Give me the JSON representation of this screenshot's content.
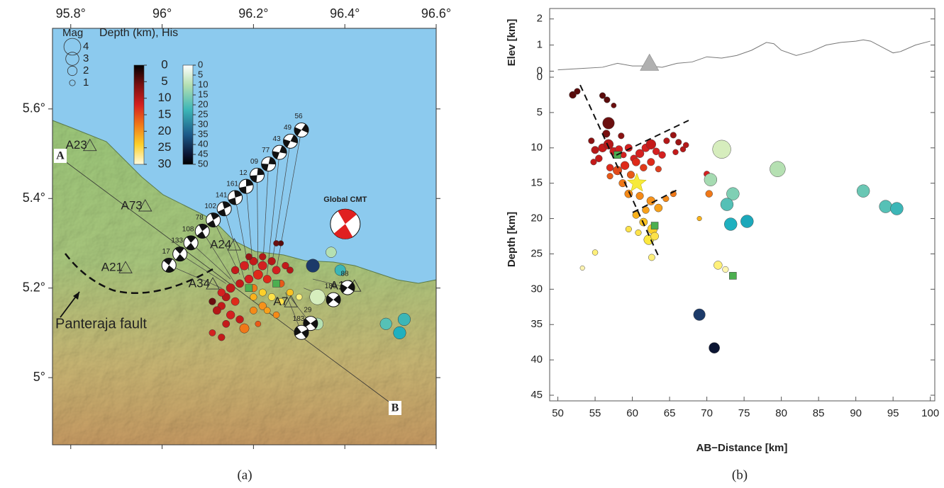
{
  "chart_data": [
    {
      "type": "map",
      "caption": "(a)",
      "xlim": [
        95.76,
        96.6
      ],
      "ylim": [
        4.85,
        5.78
      ],
      "xticks": [
        {
          "value": 95.8,
          "label": "95.8°"
        },
        {
          "value": 96,
          "label": "96°"
        },
        {
          "value": 96.2,
          "label": "96.2°"
        },
        {
          "value": 96.4,
          "label": "96.4°"
        },
        {
          "value": 96.6,
          "label": "96.6°"
        }
      ],
      "yticks": [
        {
          "value": 5,
          "label": "5°"
        },
        {
          "value": 5.2,
          "label": "5.2°"
        },
        {
          "value": 5.4,
          "label": "5.4°"
        },
        {
          "value": 5.6,
          "label": "5.6°"
        }
      ],
      "profile_start": "A",
      "profile_end": "B",
      "fault_label": "Panteraja fault",
      "mag_title": "Mag",
      "mag_legend": [
        4,
        3,
        2,
        1
      ],
      "colorbar_title": "Depth (km), His",
      "depth_ticks": [
        0,
        5,
        10,
        15,
        20,
        25,
        30
      ],
      "his_ticks": [
        0,
        5,
        10,
        15,
        20,
        25,
        30,
        35,
        40,
        45,
        50
      ],
      "stations": {
        "names": [
          "A23",
          "A73",
          "A21",
          "A24",
          "A34",
          "A7",
          "A13"
        ],
        "x": [
          95.842,
          95.963,
          95.92,
          96.158,
          96.111,
          96.282,
          96.421
        ],
        "y": [
          5.518,
          5.383,
          5.245,
          5.296,
          5.209,
          5.169,
          5.204
        ]
      },
      "mechanisms": {
        "labels": [
          "17",
          "133",
          "108",
          "78",
          "102",
          "141",
          "161",
          "12",
          "09",
          "77",
          "43",
          "49",
          "56",
          "88",
          "186",
          "29",
          "183"
        ],
        "x": [
          96.015,
          96.039,
          96.063,
          96.088,
          96.112,
          96.136,
          96.16,
          96.184,
          96.208,
          96.233,
          96.257,
          96.281,
          96.305,
          96.406,
          96.375,
          96.325,
          96.305
        ],
        "y": [
          5.251,
          5.276,
          5.301,
          5.327,
          5.352,
          5.377,
          5.402,
          5.427,
          5.452,
          5.477,
          5.503,
          5.528,
          5.553,
          5.201,
          5.174,
          5.121,
          5.101
        ],
        "event_x": [
          96.13,
          96.14,
          96.15,
          96.16,
          96.17,
          96.18,
          96.19,
          96.2,
          96.21,
          96.22,
          96.23,
          96.24,
          96.25,
          96.33,
          96.31,
          96.28,
          96.27
        ],
        "event_y": [
          5.2,
          5.21,
          5.22,
          5.21,
          5.23,
          5.22,
          5.24,
          5.23,
          5.25,
          5.24,
          5.23,
          5.25,
          5.24,
          5.22,
          5.2,
          5.18,
          5.19
        ]
      },
      "global_cmt": {
        "label": "Global CMT",
        "x": 96.401,
        "y": 5.343,
        "color": "#e02020"
      },
      "events": {
        "x": [
          96.16,
          96.18,
          96.2,
          96.22,
          96.24,
          96.25,
          96.21,
          96.19,
          96.17,
          96.15,
          96.14,
          96.13,
          96.12,
          96.15,
          96.17,
          96.16,
          96.2,
          96.23,
          96.26,
          96.27,
          96.28,
          96.22,
          96.19,
          96.13,
          96.11,
          96.25,
          96.26,
          96.14,
          96.18,
          96.13,
          96.11,
          96.2,
          96.22,
          96.2,
          96.22,
          96.24,
          96.26,
          96.28,
          96.23,
          96.25,
          96.21,
          96.3,
          96.33,
          96.37,
          96.39,
          96.34,
          96.34,
          96.49,
          96.53,
          96.52,
          96.41
        ],
        "y": [
          5.24,
          5.25,
          5.26,
          5.25,
          5.26,
          5.24,
          5.23,
          5.22,
          5.21,
          5.2,
          5.18,
          5.16,
          5.15,
          5.14,
          5.13,
          5.17,
          5.2,
          5.22,
          5.21,
          5.25,
          5.24,
          5.27,
          5.27,
          5.19,
          5.17,
          5.3,
          5.3,
          5.12,
          5.11,
          5.09,
          5.1,
          5.15,
          5.16,
          5.18,
          5.19,
          5.18,
          5.17,
          5.19,
          5.15,
          5.14,
          5.12,
          5.18,
          5.25,
          5.28,
          5.24,
          5.18,
          5.12,
          5.12,
          5.13,
          5.1,
          5.21
        ],
        "sizes": [
          1.5,
          1.8,
          1.6,
          1.8,
          1.5,
          1.6,
          2,
          1.7,
          1.6,
          1.8,
          1.6,
          1.5,
          1.6,
          1.7,
          1.5,
          1.6,
          1.5,
          1.6,
          1.4,
          1.3,
          1.2,
          1.3,
          1.2,
          1.5,
          1.3,
          1,
          0.9,
          1.4,
          2,
          1.3,
          1.2,
          1.4,
          1.5,
          1.3,
          1.4,
          1.4,
          1.2,
          1.3,
          1.2,
          1.2,
          1,
          1.1,
          3,
          2.3,
          2.4,
          3.6,
          2.6,
          2.6,
          2.8,
          2.8,
          1.2
        ],
        "colors": [
          "#c41a1a",
          "#d42020",
          "#c41a1a",
          "#d42020",
          "#b51818",
          "#d42020",
          "#de2a1a",
          "#d42020",
          "#c41a1a",
          "#c41a1a",
          "#b51818",
          "#c41a1a",
          "#b51818",
          "#d42020",
          "#c41a1a",
          "#de2a1a",
          "#f07818",
          "#de2a1a",
          "#e85a18",
          "#c41a1a",
          "#b51818",
          "#b51818",
          "#9a1414",
          "#d42020",
          "#6b0f0f",
          "#6b0f0f",
          "#5a0b0b",
          "#c41a1a",
          "#f07818",
          "#c41a1a",
          "#d42020",
          "#f48a18",
          "#f6921a",
          "#f9b21c",
          "#fcd02a",
          "#fde24a",
          "#fde24a",
          "#fbc220",
          "#f7a01a",
          "#f48a18",
          "#e85a18",
          "#fff07a",
          "#1c3a69",
          "#b5e0b2",
          "#3cb6b7",
          "#d6edbd",
          "#b5e0b2",
          "#56c1b6",
          "#3cb6b7",
          "#1fb0bf",
          "#0b1533"
        ]
      },
      "squares": {
        "x": [
          96.19,
          96.25
        ],
        "y": [
          5.2,
          5.21
        ],
        "color": "#4caf50"
      }
    },
    {
      "type": "scatter",
      "caption": "(b)",
      "xlabel": "AB−Distance [km]",
      "ylabel": "Depth [km]",
      "y2label": "Elev [km]",
      "xlim": [
        48.9,
        100.6
      ],
      "ylim": [
        45.8,
        -0.3
      ],
      "y2lim": [
        -0.15,
        2.4
      ],
      "xticks": [
        50,
        55,
        60,
        65,
        70,
        75,
        80,
        85,
        90,
        95,
        100
      ],
      "yticks": [
        0,
        5,
        10,
        15,
        20,
        25,
        30,
        35,
        40,
        45
      ],
      "y2ticks": [
        0,
        1,
        2
      ],
      "topography": {
        "axis": "y2",
        "color": "#777777",
        "x": [
          50,
          53,
          56,
          58,
          60,
          62,
          64,
          66,
          68,
          70,
          72,
          74,
          76,
          78,
          79,
          80,
          82,
          84,
          86,
          88,
          90,
          91,
          92,
          94,
          95,
          96,
          98,
          100
        ],
        "y": [
          0.05,
          0.1,
          0.15,
          0.3,
          0.2,
          0.2,
          0.15,
          0.3,
          0.35,
          0.55,
          0.5,
          0.6,
          0.8,
          1.1,
          1.05,
          0.8,
          0.6,
          0.75,
          1.0,
          1.1,
          1.15,
          1.2,
          1.15,
          0.85,
          0.7,
          0.75,
          1.0,
          1.15
        ]
      },
      "volcano": {
        "axis": "y2",
        "x": 62.3,
        "y": 0.3,
        "color": "#b0b0b0"
      },
      "points": {
        "x": [
          52,
          52.6,
          56,
          56.6,
          57.5,
          56.8,
          56.5,
          58.5,
          54.5,
          55,
          55.5,
          54.8,
          56,
          56.8,
          57.5,
          58.2,
          58.8,
          59.5,
          60.2,
          61,
          61.8,
          62.5,
          63.2,
          64,
          64.6,
          65.5,
          66.2,
          66.8,
          67.2,
          65.8,
          59,
          60.5,
          61.5,
          62.5,
          57,
          58,
          59.8,
          63.5,
          57,
          58.7,
          59.5,
          61,
          62.5,
          63.5,
          61.8,
          64.5,
          65.5,
          60.5,
          61.5,
          62.7,
          59.5,
          62.2,
          62.6,
          63,
          60.8,
          55,
          53.3,
          70,
          70.3,
          69,
          71.5,
          72.5,
          72,
          70.5,
          73.5,
          72.7,
          79.5,
          73.2,
          75.4,
          91,
          94,
          95.5,
          69,
          71
        ],
        "y": [
          2.5,
          2,
          2.6,
          3.2,
          4,
          6.5,
          8,
          8.3,
          9,
          10.3,
          11.5,
          12,
          10,
          9.5,
          10.5,
          10.2,
          11,
          10,
          11.5,
          10.8,
          10,
          9.5,
          10.5,
          11,
          9,
          8.2,
          9.2,
          10.2,
          9.6,
          10.6,
          12.5,
          12,
          12.8,
          12,
          12.8,
          13.2,
          13.8,
          13,
          14,
          15,
          16.5,
          16.8,
          17.5,
          18.5,
          18.8,
          17.2,
          16.5,
          19.5,
          20.5,
          21.5,
          21.5,
          23,
          25.5,
          22.5,
          22,
          24.8,
          27,
          13.7,
          16.5,
          20,
          26.6,
          27.2,
          10.2,
          14.5,
          16.5,
          18,
          13,
          20.8,
          20.4,
          16.1,
          18.3,
          18.6,
          33.6,
          38.3
        ],
        "sizes": [
          1.2,
          1,
          1,
          1,
          0.8,
          2.2,
          1.3,
          1,
          1,
          1.3,
          1.2,
          1,
          1.5,
          1.8,
          1.4,
          1.3,
          1,
          1.3,
          1.2,
          1.5,
          1.4,
          1.8,
          1.2,
          1.2,
          1,
          1,
          1,
          0.9,
          0.9,
          0.9,
          1.5,
          1.4,
          1.2,
          1.3,
          1.2,
          1.6,
          1.3,
          1,
          1,
          1.3,
          1.4,
          1.3,
          1.5,
          1.4,
          1.2,
          1,
          1,
          1.2,
          1.4,
          1.8,
          1,
          1.8,
          1.1,
          1.4,
          1,
          0.9,
          0.7,
          1,
          1.2,
          0.7,
          1.5,
          1,
          3.6,
          2.4,
          2.4,
          2.4,
          3,
          2.4,
          2.4,
          2.4,
          2.4,
          2.4,
          2.2,
          2
        ],
        "colors": [
          "#5a0b0b",
          "#5a0b0b",
          "#5a0b0b",
          "#5a0b0b",
          "#6b0f0f",
          "#6b0f0f",
          "#7a1010",
          "#8a1212",
          "#8a1212",
          "#b51818",
          "#c41a1a",
          "#c41a1a",
          "#c41a1a",
          "#b51818",
          "#cc1f1f",
          "#d42020",
          "#d42020",
          "#d42020",
          "#d42020",
          "#d42020",
          "#d42020",
          "#c41a1a",
          "#d42020",
          "#d42020",
          "#b51818",
          "#9a1414",
          "#9a1414",
          "#b51818",
          "#b51818",
          "#c41a1a",
          "#de2a1a",
          "#de2a1a",
          "#e03a1a",
          "#de2a1a",
          "#de2a1a",
          "#e24a1a",
          "#e85a18",
          "#e04020",
          "#e85a18",
          "#f07818",
          "#f48a18",
          "#f48a18",
          "#f6921a",
          "#f7a01a",
          "#f7a01a",
          "#f48a18",
          "#f07818",
          "#f9b21c",
          "#fbc220",
          "#fcd02a",
          "#fde24a",
          "#fde83e",
          "#fff07a",
          "#fde24a",
          "#fde24a",
          "#fff07a",
          "#fff4b0",
          "#d42020",
          "#f07818",
          "#f9b21c",
          "#fff07a",
          "#fff6b0",
          "#d6edbd",
          "#a6dbb2",
          "#7fcfb4",
          "#54c0b6",
          "#b5e0b2",
          "#1fb0bf",
          "#1ca8ba",
          "#6ac7b4",
          "#56c1b6",
          "#3cb6b7",
          "#1c3a69",
          "#0b1533"
        ]
      },
      "squares": {
        "x": [
          58,
          63,
          73.5
        ],
        "y": [
          11,
          21,
          28.1
        ],
        "color": "#4caf50"
      },
      "star": {
        "x": 60.6,
        "y": 15,
        "color": "#f6ea3a"
      }
    }
  ]
}
